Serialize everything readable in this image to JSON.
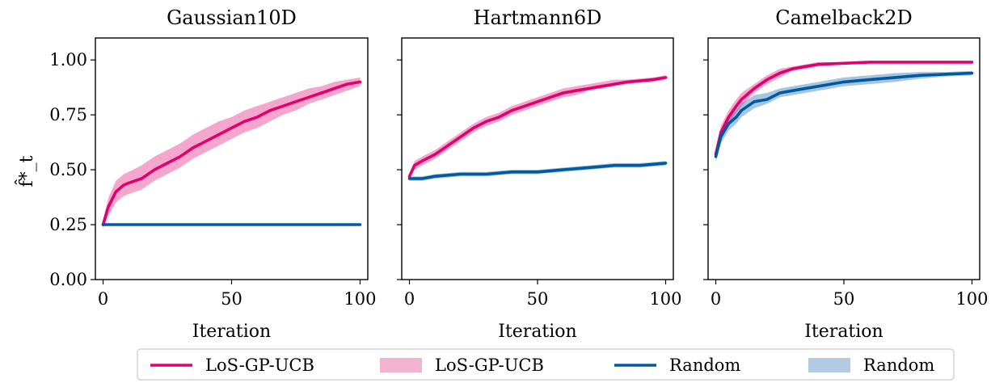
{
  "figure": {
    "ylabel": "f̂*_t",
    "xlabel": "Iteration"
  },
  "legend": {
    "placement": "bottom-center",
    "items": [
      {
        "label": "LoS-GP-UCB",
        "kind": "line",
        "color": "#e0006e"
      },
      {
        "label": "LoS-GP-UCB",
        "kind": "band",
        "color": "#f3b3d2"
      },
      {
        "label": "Random",
        "kind": "line",
        "color": "#005aa0"
      },
      {
        "label": "Random",
        "kind": "band",
        "color": "#b3cbe2"
      }
    ]
  },
  "colors": {
    "los_line": "#e0006e",
    "los_band": "#e0006e",
    "random_line": "#005aa0",
    "random_band": "#005aa0"
  },
  "chart_data": [
    {
      "type": "line",
      "title": "Gaussian10D",
      "xlabel": "Iteration",
      "ylabel": "f̂*_t",
      "xlim": [
        -3,
        103
      ],
      "ylim": [
        0.0,
        1.1
      ],
      "xticks": [
        "0",
        "50",
        "100"
      ],
      "yticks": [
        "0.00",
        "0.25",
        "0.50",
        "0.75",
        "1.00"
      ],
      "grid": false,
      "series": [
        {
          "name": "LoS-GP-UCB",
          "x": [
            0,
            2,
            5,
            8,
            10,
            15,
            20,
            25,
            30,
            35,
            40,
            45,
            50,
            55,
            60,
            65,
            70,
            75,
            80,
            85,
            90,
            95,
            100
          ],
          "values": [
            0.25,
            0.33,
            0.4,
            0.43,
            0.44,
            0.46,
            0.5,
            0.53,
            0.56,
            0.6,
            0.63,
            0.66,
            0.69,
            0.72,
            0.74,
            0.77,
            0.79,
            0.81,
            0.83,
            0.85,
            0.87,
            0.89,
            0.9
          ],
          "band_lower": [
            0.23,
            0.29,
            0.35,
            0.38,
            0.39,
            0.41,
            0.45,
            0.48,
            0.51,
            0.55,
            0.58,
            0.61,
            0.64,
            0.67,
            0.69,
            0.72,
            0.75,
            0.77,
            0.8,
            0.82,
            0.84,
            0.86,
            0.88
          ],
          "band_upper": [
            0.27,
            0.37,
            0.45,
            0.48,
            0.49,
            0.52,
            0.56,
            0.59,
            0.62,
            0.66,
            0.69,
            0.72,
            0.74,
            0.77,
            0.79,
            0.81,
            0.83,
            0.85,
            0.87,
            0.88,
            0.9,
            0.91,
            0.92
          ]
        },
        {
          "name": "Random",
          "x": [
            0,
            100
          ],
          "values": [
            0.25,
            0.25
          ],
          "band_lower": [
            0.25,
            0.25
          ],
          "band_upper": [
            0.25,
            0.25
          ]
        }
      ]
    },
    {
      "type": "line",
      "title": "Hartmann6D",
      "xlabel": "Iteration",
      "ylabel": "",
      "xlim": [
        -3,
        103
      ],
      "ylim": [
        0.0,
        1.1
      ],
      "xticks": [
        "0",
        "50",
        "100"
      ],
      "yticks": [],
      "grid": false,
      "series": [
        {
          "name": "LoS-GP-UCB",
          "x": [
            0,
            2,
            5,
            10,
            15,
            20,
            25,
            30,
            35,
            40,
            45,
            50,
            55,
            60,
            65,
            70,
            75,
            80,
            85,
            90,
            95,
            100
          ],
          "values": [
            0.47,
            0.52,
            0.54,
            0.57,
            0.61,
            0.65,
            0.69,
            0.72,
            0.74,
            0.77,
            0.79,
            0.81,
            0.83,
            0.85,
            0.86,
            0.87,
            0.88,
            0.89,
            0.9,
            0.905,
            0.91,
            0.92
          ],
          "band_lower": [
            0.46,
            0.5,
            0.52,
            0.55,
            0.59,
            0.63,
            0.67,
            0.7,
            0.72,
            0.75,
            0.77,
            0.79,
            0.81,
            0.83,
            0.84,
            0.86,
            0.87,
            0.88,
            0.89,
            0.895,
            0.9,
            0.91
          ],
          "band_upper": [
            0.48,
            0.54,
            0.56,
            0.59,
            0.63,
            0.67,
            0.71,
            0.74,
            0.76,
            0.79,
            0.81,
            0.83,
            0.85,
            0.87,
            0.88,
            0.89,
            0.9,
            0.91,
            0.91,
            0.915,
            0.92,
            0.93
          ]
        },
        {
          "name": "Random",
          "x": [
            0,
            5,
            10,
            20,
            30,
            40,
            50,
            60,
            70,
            80,
            90,
            100
          ],
          "values": [
            0.46,
            0.46,
            0.47,
            0.48,
            0.48,
            0.49,
            0.49,
            0.5,
            0.51,
            0.52,
            0.52,
            0.53
          ],
          "band_lower": [
            0.45,
            0.45,
            0.46,
            0.47,
            0.47,
            0.48,
            0.48,
            0.49,
            0.5,
            0.51,
            0.51,
            0.52
          ],
          "band_upper": [
            0.47,
            0.47,
            0.48,
            0.49,
            0.49,
            0.5,
            0.5,
            0.51,
            0.52,
            0.53,
            0.53,
            0.54
          ]
        }
      ]
    },
    {
      "type": "line",
      "title": "Camelback2D",
      "xlabel": "Iteration",
      "ylabel": "",
      "xlim": [
        -3,
        103
      ],
      "ylim": [
        0.0,
        1.1
      ],
      "xticks": [
        "0",
        "50",
        "100"
      ],
      "yticks": [],
      "grid": false,
      "series": [
        {
          "name": "LoS-GP-UCB",
          "x": [
            0,
            2,
            5,
            8,
            10,
            15,
            20,
            25,
            30,
            35,
            40,
            50,
            60,
            70,
            80,
            90,
            100
          ],
          "values": [
            0.57,
            0.67,
            0.74,
            0.79,
            0.82,
            0.87,
            0.91,
            0.94,
            0.96,
            0.97,
            0.98,
            0.985,
            0.99,
            0.99,
            0.99,
            0.99,
            0.99
          ],
          "band_lower": [
            0.55,
            0.64,
            0.71,
            0.76,
            0.79,
            0.85,
            0.89,
            0.92,
            0.95,
            0.96,
            0.97,
            0.98,
            0.985,
            0.985,
            0.985,
            0.985,
            0.985
          ],
          "band_upper": [
            0.59,
            0.7,
            0.77,
            0.82,
            0.85,
            0.89,
            0.93,
            0.96,
            0.97,
            0.98,
            0.99,
            0.99,
            0.995,
            0.995,
            0.995,
            0.995,
            0.995
          ]
        },
        {
          "name": "Random",
          "x": [
            0,
            2,
            5,
            8,
            10,
            15,
            20,
            25,
            30,
            40,
            50,
            60,
            70,
            80,
            90,
            100
          ],
          "values": [
            0.56,
            0.65,
            0.71,
            0.74,
            0.77,
            0.81,
            0.82,
            0.85,
            0.86,
            0.88,
            0.9,
            0.91,
            0.92,
            0.93,
            0.935,
            0.94
          ],
          "band_lower": [
            0.54,
            0.62,
            0.68,
            0.71,
            0.74,
            0.78,
            0.8,
            0.83,
            0.84,
            0.86,
            0.88,
            0.89,
            0.9,
            0.915,
            0.925,
            0.93
          ],
          "band_upper": [
            0.58,
            0.68,
            0.74,
            0.77,
            0.8,
            0.84,
            0.85,
            0.87,
            0.88,
            0.9,
            0.92,
            0.93,
            0.94,
            0.945,
            0.945,
            0.95
          ]
        }
      ]
    }
  ]
}
